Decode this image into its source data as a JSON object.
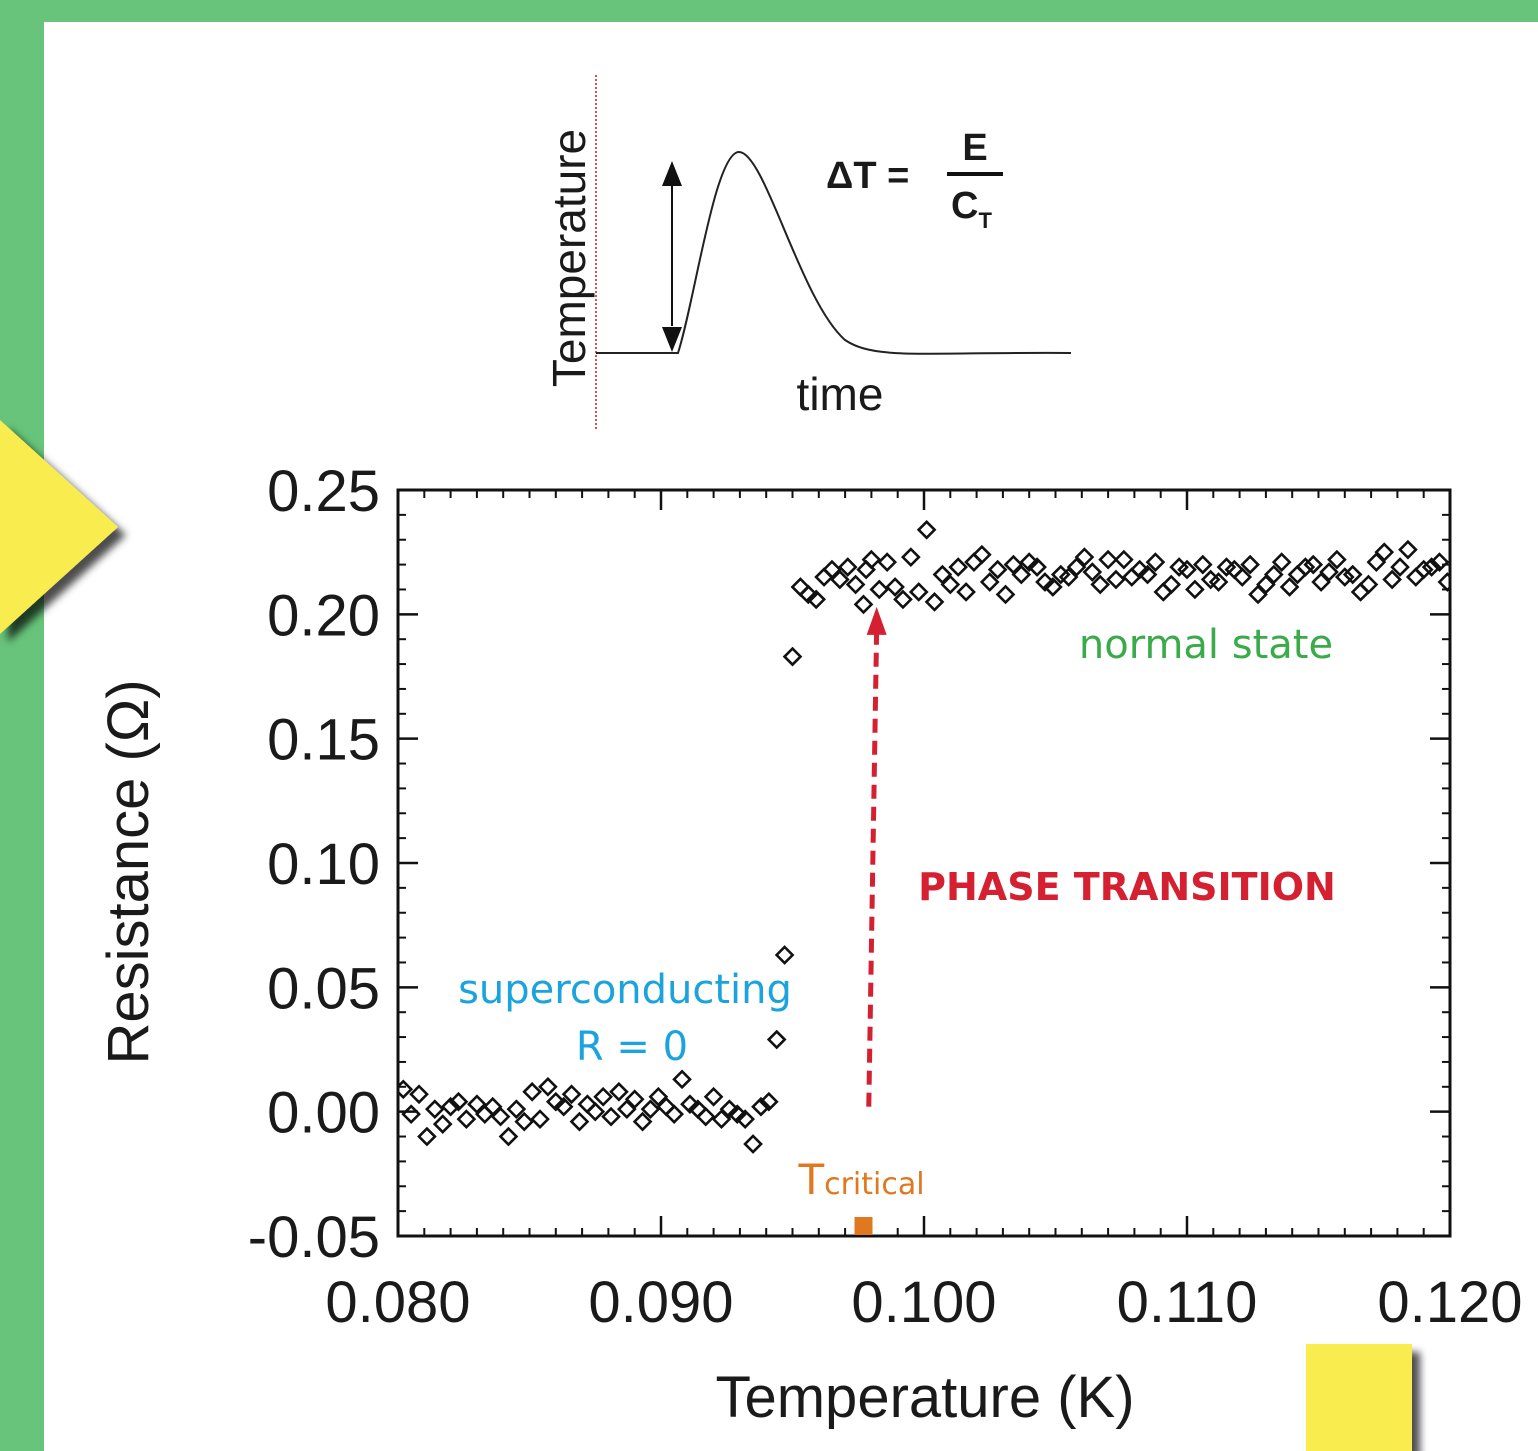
{
  "inset": {
    "ylabel": "Temperature",
    "xlabel": "time",
    "formula_lhs": "ΔT =",
    "formula_num": "E",
    "formula_den": "C",
    "formula_den_sub": "T"
  },
  "annotations": {
    "superconducting": "superconducting",
    "r_zero": "R = 0",
    "normal_state": "normal state",
    "phase_transition": "PHASE TRANSITION",
    "t_critical_main": "T",
    "t_critical_sub": "critical"
  },
  "colors": {
    "background": "#67c47a",
    "panel": "#ffffff",
    "superconducting": "#1aa3dc",
    "normal_state": "#3aaa4a",
    "phase_transition": "#d42030",
    "t_critical": "#e07820",
    "decoration_yellow": "#f8ec50"
  },
  "chart_data": {
    "type": "scatter",
    "xlabel": "Temperature (K)",
    "ylabel": "Resistance (Ω)",
    "xlim": [
      0.08,
      0.12
    ],
    "ylim": [
      -0.05,
      0.25
    ],
    "xticks": [
      "0.080",
      "0.090",
      "0.100",
      "0.110",
      "0.120"
    ],
    "yticks": [
      "0.25",
      "0.20",
      "0.15",
      "0.10",
      "0.05",
      "0.00",
      "-0.05"
    ],
    "marker": "open diamond",
    "grid": false,
    "series": [
      {
        "x": [
          0.0802,
          0.0805,
          0.0808,
          0.0811,
          0.0814,
          0.0817,
          0.082,
          0.0823,
          0.0826,
          0.083,
          0.0833,
          0.0836,
          0.0839,
          0.0842,
          0.0845,
          0.0848,
          0.0851,
          0.0854,
          0.0857,
          0.086,
          0.0863,
          0.0866,
          0.0869,
          0.0872,
          0.0875,
          0.0878,
          0.0881,
          0.0884,
          0.0887,
          0.089,
          0.0893,
          0.0896,
          0.0899,
          0.0902,
          0.0905,
          0.0908,
          0.0911,
          0.0914,
          0.0917,
          0.092,
          0.0923,
          0.0926,
          0.0929,
          0.0932,
          0.0935,
          0.0938,
          0.0941,
          0.0944,
          0.0947,
          0.095,
          0.0953,
          0.0956,
          0.0959,
          0.0962,
          0.0965,
          0.0968,
          0.0971,
          0.0974,
          0.0977,
          0.0978,
          0.098,
          0.0983,
          0.0986,
          0.0989,
          0.0992,
          0.0995,
          0.0998,
          0.1001,
          0.1004,
          0.1007,
          0.101,
          0.1013,
          0.1016,
          0.1019,
          0.1022,
          0.1025,
          0.1028,
          0.1031,
          0.1034,
          0.1037,
          0.104,
          0.1043,
          0.1046,
          0.1049,
          0.1052,
          0.1055,
          0.1058,
          0.1061,
          0.1064,
          0.1067,
          0.107,
          0.1073,
          0.1076,
          0.1079,
          0.1082,
          0.1085,
          0.1088,
          0.1091,
          0.1094,
          0.1097,
          0.11,
          0.1103,
          0.1106,
          0.1109,
          0.1112,
          0.1115,
          0.1118,
          0.1121,
          0.1124,
          0.1127,
          0.113,
          0.1133,
          0.1136,
          0.1139,
          0.1142,
          0.1145,
          0.1148,
          0.1151,
          0.1154,
          0.1157,
          0.116,
          0.1163,
          0.1166,
          0.1169,
          0.1172,
          0.1175,
          0.1178,
          0.1181,
          0.1184,
          0.1187,
          0.119,
          0.1193,
          0.1196,
          0.1199
        ],
        "y": [
          0.009,
          -0.001,
          0.007,
          -0.01,
          0.001,
          -0.005,
          0.002,
          0.004,
          -0.003,
          0.003,
          -0.001,
          0.002,
          -0.002,
          -0.01,
          0.001,
          -0.004,
          0.008,
          -0.003,
          0.01,
          0.004,
          0.002,
          0.007,
          -0.004,
          0.003,
          0.0,
          0.006,
          -0.002,
          0.008,
          0.001,
          0.005,
          -0.004,
          0.001,
          0.006,
          0.002,
          -0.001,
          0.013,
          0.003,
          0.001,
          -0.002,
          0.006,
          -0.003,
          0.001,
          -0.001,
          -0.003,
          -0.013,
          0.002,
          0.004,
          0.029,
          0.063,
          0.183,
          0.211,
          0.208,
          0.206,
          0.215,
          0.218,
          0.214,
          0.219,
          0.212,
          0.204,
          0.218,
          0.222,
          0.21,
          0.221,
          0.211,
          0.206,
          0.223,
          0.209,
          0.234,
          0.205,
          0.216,
          0.212,
          0.219,
          0.209,
          0.221,
          0.224,
          0.213,
          0.218,
          0.208,
          0.22,
          0.216,
          0.221,
          0.219,
          0.213,
          0.211,
          0.216,
          0.215,
          0.219,
          0.223,
          0.217,
          0.212,
          0.222,
          0.214,
          0.222,
          0.215,
          0.218,
          0.216,
          0.221,
          0.209,
          0.212,
          0.219,
          0.218,
          0.21,
          0.22,
          0.214,
          0.213,
          0.219,
          0.218,
          0.215,
          0.22,
          0.208,
          0.212,
          0.216,
          0.221,
          0.211,
          0.216,
          0.219,
          0.22,
          0.213,
          0.217,
          0.222,
          0.215,
          0.216,
          0.209,
          0.212,
          0.221,
          0.225,
          0.214,
          0.219,
          0.226,
          0.215,
          0.218,
          0.219,
          0.221,
          0.213
        ]
      }
    ],
    "transition_arrow": {
      "from": [
        0.0979,
        0.002
      ],
      "to": [
        0.0982,
        0.203
      ]
    },
    "t_critical_x": 0.0977
  }
}
